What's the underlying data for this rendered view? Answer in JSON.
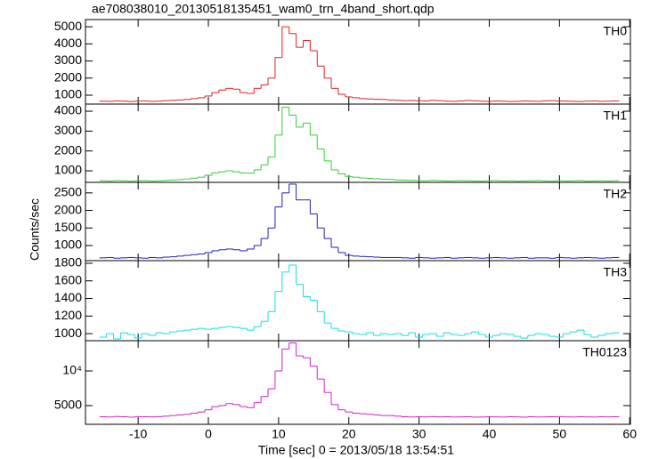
{
  "title": "ae708038010_20130518135451_wam0_trn_4band_short.qdp",
  "xlabel": "Time [sec] 0 = 2013/05/18 13:54:51",
  "ylabel": "Counts/sec",
  "chart_data": [
    {
      "type": "step",
      "label": "TH0",
      "xlim": [
        -17.5,
        60.1
      ],
      "ylim": [
        480,
        5420
      ],
      "yticks": [
        1000,
        2000,
        3000,
        4000,
        5000
      ],
      "x": [
        -15,
        -14,
        -13,
        -12,
        -11,
        -10,
        -9,
        -8,
        -7,
        -6,
        -5,
        -4,
        -3,
        -2,
        -1,
        0,
        1,
        2,
        3,
        4,
        5,
        6,
        7,
        8,
        9,
        10,
        11,
        12,
        13,
        14,
        15,
        16,
        17,
        18,
        19,
        20,
        21,
        22,
        23,
        24,
        25,
        26,
        27,
        28,
        29,
        30,
        31,
        32,
        33,
        34,
        35,
        36,
        37,
        38,
        39,
        40,
        41,
        42,
        43,
        44,
        45,
        46,
        47,
        48,
        49,
        50,
        51,
        52,
        53,
        54,
        55,
        56,
        57,
        58
      ],
      "series": [
        {
          "name": "TH0",
          "color": "#e02020",
          "values": [
            650,
            640,
            660,
            650,
            630,
            650,
            660,
            640,
            650,
            680,
            700,
            720,
            750,
            800,
            850,
            950,
            1150,
            1300,
            1400,
            1350,
            1150,
            1100,
            1400,
            1600,
            2000,
            3200,
            5000,
            4600,
            3800,
            4200,
            3600,
            2700,
            2000,
            1400,
            1050,
            900,
            850,
            800,
            780,
            760,
            750,
            720,
            700,
            680,
            690,
            670,
            660,
            700,
            680,
            650,
            640,
            660,
            690,
            670,
            650,
            640,
            660,
            650,
            630,
            640,
            660,
            650,
            640,
            670,
            680,
            660,
            650,
            640,
            630,
            650,
            660,
            640,
            650,
            660
          ]
        }
      ]
    },
    {
      "type": "step",
      "label": "TH1",
      "xlim": [
        -17.5,
        60.1
      ],
      "ylim": [
        420,
        4360
      ],
      "yticks": [
        1000,
        2000,
        3000,
        4000
      ],
      "x": [
        -15,
        -14,
        -13,
        -12,
        -11,
        -10,
        -9,
        -8,
        -7,
        -6,
        -5,
        -4,
        -3,
        -2,
        -1,
        0,
        1,
        2,
        3,
        4,
        5,
        6,
        7,
        8,
        9,
        10,
        11,
        12,
        13,
        14,
        15,
        16,
        17,
        18,
        19,
        20,
        21,
        22,
        23,
        24,
        25,
        26,
        27,
        28,
        29,
        30,
        31,
        32,
        33,
        34,
        35,
        36,
        37,
        38,
        39,
        40,
        41,
        42,
        43,
        44,
        45,
        46,
        47,
        48,
        49,
        50,
        51,
        52,
        53,
        54,
        55,
        56,
        57,
        58
      ],
      "series": [
        {
          "name": "TH1",
          "color": "#30d030",
          "values": [
            500,
            490,
            510,
            500,
            480,
            500,
            510,
            490,
            500,
            520,
            540,
            560,
            590,
            630,
            680,
            780,
            900,
            950,
            1000,
            950,
            900,
            880,
            1050,
            1300,
            1700,
            2800,
            4200,
            3800,
            3200,
            3400,
            2800,
            2100,
            1500,
            1050,
            850,
            720,
            680,
            640,
            620,
            600,
            580,
            570,
            540,
            530,
            520,
            510,
            500,
            520,
            510,
            490,
            500,
            510,
            500,
            490,
            480,
            500,
            510,
            490,
            500,
            480,
            490,
            500,
            510,
            490,
            480,
            500,
            490,
            500,
            510,
            480,
            490,
            500,
            490,
            500
          ]
        }
      ]
    },
    {
      "type": "step",
      "label": "TH2",
      "xlim": [
        -17.5,
        60.1
      ],
      "ylim": [
        570,
        2800
      ],
      "yticks": [
        1000,
        1500,
        2000,
        2500
      ],
      "x": [
        -15,
        -14,
        -13,
        -12,
        -11,
        -10,
        -9,
        -8,
        -7,
        -6,
        -5,
        -4,
        -3,
        -2,
        -1,
        0,
        1,
        2,
        3,
        4,
        5,
        6,
        7,
        8,
        9,
        10,
        11,
        12,
        13,
        14,
        15,
        16,
        17,
        18,
        19,
        20,
        21,
        22,
        23,
        24,
        25,
        26,
        27,
        28,
        29,
        30,
        31,
        32,
        33,
        34,
        35,
        36,
        37,
        38,
        39,
        40,
        41,
        42,
        43,
        44,
        45,
        46,
        47,
        48,
        49,
        50,
        51,
        52,
        53,
        54,
        55,
        56,
        57,
        58
      ],
      "series": [
        {
          "name": "TH2",
          "color": "#2020c0",
          "values": [
            650,
            660,
            640,
            650,
            660,
            650,
            640,
            660,
            650,
            670,
            680,
            700,
            720,
            740,
            760,
            800,
            850,
            880,
            900,
            880,
            850,
            900,
            1000,
            1200,
            1500,
            2100,
            2500,
            2750,
            2300,
            2300,
            1900,
            1500,
            1200,
            950,
            800,
            720,
            700,
            690,
            680,
            670,
            660,
            660,
            660,
            650,
            640,
            660,
            650,
            640,
            650,
            660,
            640,
            650,
            660,
            650,
            640,
            650,
            660,
            650,
            640,
            650,
            660,
            640,
            650,
            650,
            640,
            660,
            650,
            640,
            650,
            660,
            650,
            640,
            650,
            660
          ]
        }
      ]
    },
    {
      "type": "step",
      "label": "TH3",
      "xlim": [
        -17.5,
        60.1
      ],
      "ylim": [
        920,
        1830
      ],
      "yticks": [
        1000,
        1200,
        1400,
        1600,
        1800
      ],
      "x": [
        -15,
        -14,
        -13,
        -12,
        -11,
        -10,
        -9,
        -8,
        -7,
        -6,
        -5,
        -4,
        -3,
        -2,
        -1,
        0,
        1,
        2,
        3,
        4,
        5,
        6,
        7,
        8,
        9,
        10,
        11,
        12,
        13,
        14,
        15,
        16,
        17,
        18,
        19,
        20,
        21,
        22,
        23,
        24,
        25,
        26,
        27,
        28,
        29,
        30,
        31,
        32,
        33,
        34,
        35,
        36,
        37,
        38,
        39,
        40,
        41,
        42,
        43,
        44,
        45,
        46,
        47,
        48,
        49,
        50,
        51,
        52,
        53,
        54,
        55,
        56,
        57,
        58
      ],
      "series": [
        {
          "name": "TH3",
          "color": "#10e0e0",
          "values": [
            960,
            1000,
            940,
            1010,
            990,
            950,
            1000,
            980,
            1010,
            1000,
            1020,
            1030,
            1040,
            1050,
            1060,
            1050,
            1060,
            1070,
            1080,
            1070,
            1060,
            1040,
            1080,
            1140,
            1250,
            1480,
            1700,
            1780,
            1560,
            1420,
            1380,
            1250,
            1120,
            1060,
            1030,
            1020,
            1000,
            990,
            1010,
            980,
            1000,
            990,
            1000,
            980,
            1010,
            960,
            990,
            1000,
            970,
            1010,
            990,
            980,
            1000,
            1020,
            990,
            960,
            980,
            1000,
            990,
            970,
            950,
            980,
            1000,
            990,
            970,
            960,
            1000,
            1020,
            1040,
            990,
            960,
            980,
            1000,
            1010
          ]
        }
      ]
    },
    {
      "type": "step",
      "label": "TH0123",
      "log": true,
      "xlim": [
        -17.5,
        60.1
      ],
      "ylim": [
        3440,
        18300
      ],
      "yticks": [
        5000,
        {
          "value": 10000,
          "label": "10⁴"
        }
      ],
      "xticks": [
        -10,
        0,
        10,
        20,
        30,
        40,
        50,
        60
      ],
      "x": [
        -15,
        -14,
        -13,
        -12,
        -11,
        -10,
        -9,
        -8,
        -7,
        -6,
        -5,
        -4,
        -3,
        -2,
        -1,
        0,
        1,
        2,
        3,
        4,
        5,
        6,
        7,
        8,
        9,
        10,
        11,
        12,
        13,
        14,
        15,
        16,
        17,
        18,
        19,
        20,
        21,
        22,
        23,
        24,
        25,
        26,
        27,
        28,
        29,
        30,
        31,
        32,
        33,
        34,
        35,
        36,
        37,
        38,
        39,
        40,
        41,
        42,
        43,
        44,
        45,
        46,
        47,
        48,
        49,
        50,
        51,
        52,
        53,
        54,
        55,
        56,
        57,
        58
      ],
      "series": [
        {
          "name": "TH0123",
          "color": "#d020d0",
          "values": [
            4000,
            3980,
            4020,
            4000,
            3970,
            4010,
            4000,
            3990,
            4010,
            4050,
            4100,
            4150,
            4200,
            4300,
            4400,
            4600,
            4900,
            5000,
            5200,
            5100,
            4900,
            4800,
            5300,
            6000,
            7000,
            10000,
            15500,
            17500,
            13500,
            13000,
            11000,
            8500,
            6500,
            5100,
            4600,
            4400,
            4300,
            4250,
            4200,
            4150,
            4100,
            4100,
            4050,
            4000,
            3980,
            4000,
            3990,
            4010,
            3990,
            4000,
            3980,
            3990,
            4000,
            3970,
            3980,
            4000,
            3990,
            3980,
            4000,
            3990,
            3970,
            4000,
            3980,
            3990,
            4000,
            4010,
            3990,
            3980,
            4000,
            3990,
            3980,
            4000,
            3990,
            4000
          ]
        }
      ]
    }
  ]
}
